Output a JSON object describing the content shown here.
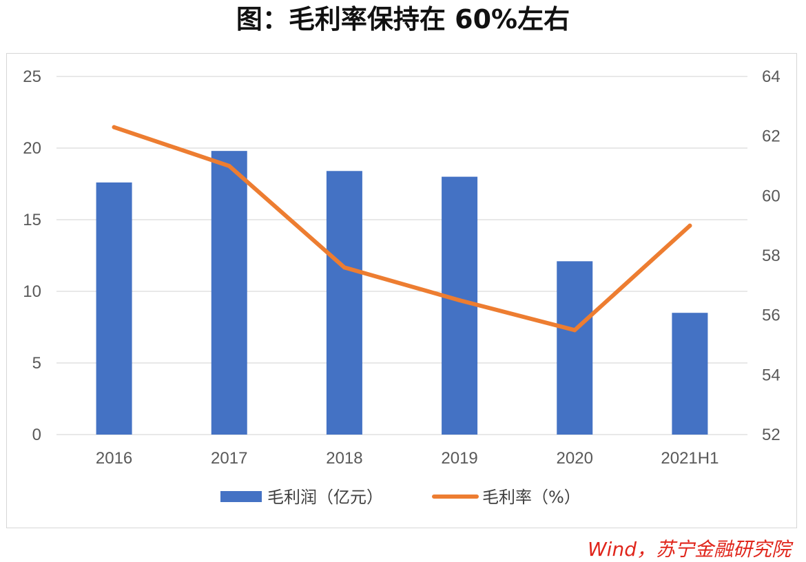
{
  "title": "图：毛利率保持在 60%左右",
  "source": "Wind，苏宁金融研究院",
  "colors": {
    "bar": "#4472c4",
    "line": "#ed7d31",
    "grid": "#d9d9d9",
    "axis_text": "#595959"
  },
  "chart_data": {
    "type": "bar",
    "categories": [
      "2016",
      "2017",
      "2018",
      "2019",
      "2020",
      "2021H1"
    ],
    "series": [
      {
        "name": "毛利润（亿元）",
        "type": "bar",
        "axis": "left",
        "values": [
          17.6,
          19.8,
          18.4,
          18.0,
          12.1,
          8.5
        ]
      },
      {
        "name": "毛利率（%）",
        "type": "line",
        "axis": "right",
        "values": [
          62.3,
          61.0,
          57.6,
          56.5,
          55.5,
          59.0
        ]
      }
    ],
    "y_left": {
      "ylim": [
        0,
        25
      ],
      "ticks": [
        "0",
        "5",
        "10",
        "15",
        "20",
        "25"
      ]
    },
    "y_right": {
      "ylim": [
        52,
        64
      ],
      "ticks": [
        "52",
        "54",
        "56",
        "58",
        "60",
        "62",
        "64"
      ]
    },
    "grid": true,
    "legend_position": "bottom"
  }
}
